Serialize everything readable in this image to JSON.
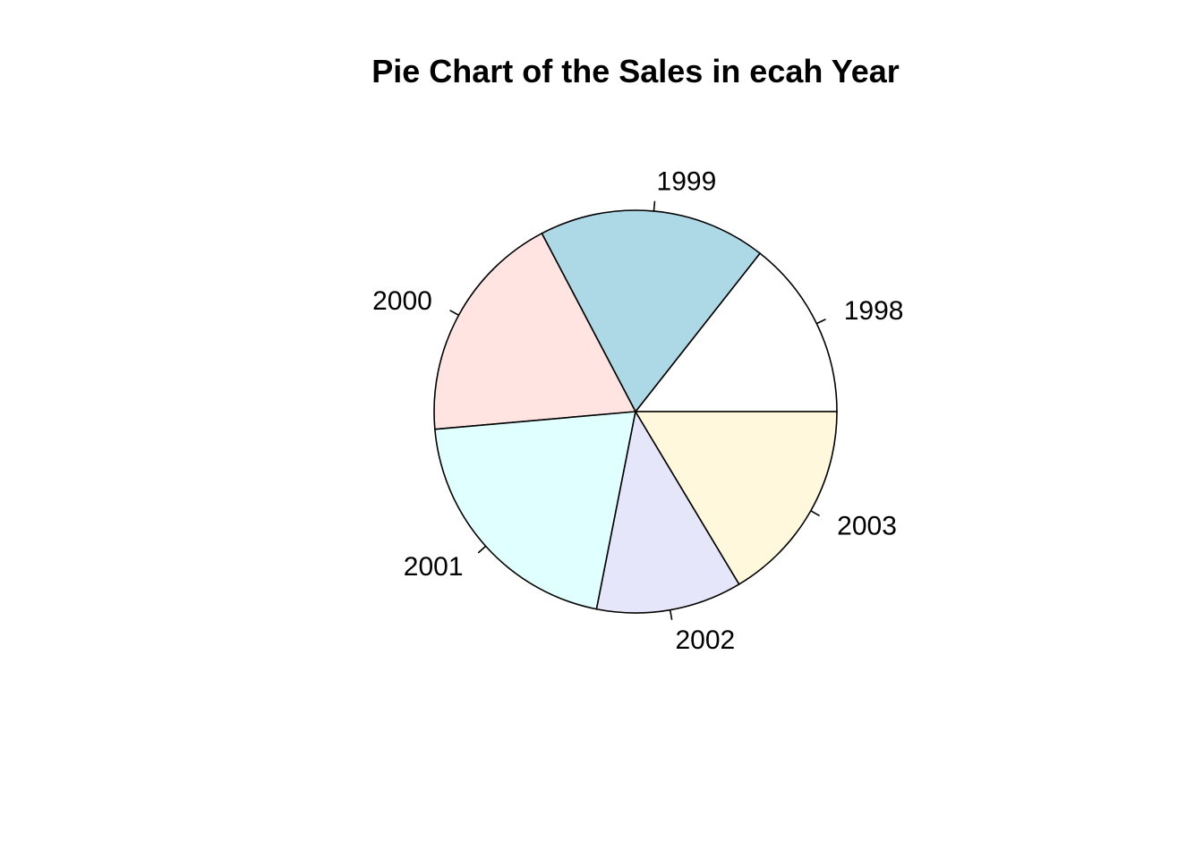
{
  "chart_data": {
    "type": "pie",
    "title": "Pie Chart of the Sales in ecah Year",
    "direction": "counterclockwise",
    "start": "3 o'clock",
    "slices": [
      {
        "label": "1998",
        "value": 14.4,
        "color": "#FFFFFF"
      },
      {
        "label": "1999",
        "value": 18.3,
        "color": "#ADD8E6"
      },
      {
        "label": "2000",
        "value": 18.7,
        "color": "#FFE4E1"
      },
      {
        "label": "2001",
        "value": 20.5,
        "color": "#E0FFFF"
      },
      {
        "label": "2002",
        "value": 11.7,
        "color": "#E6E6FA"
      },
      {
        "label": "2003",
        "value": 16.4,
        "color": "#FFF8DC"
      }
    ]
  }
}
